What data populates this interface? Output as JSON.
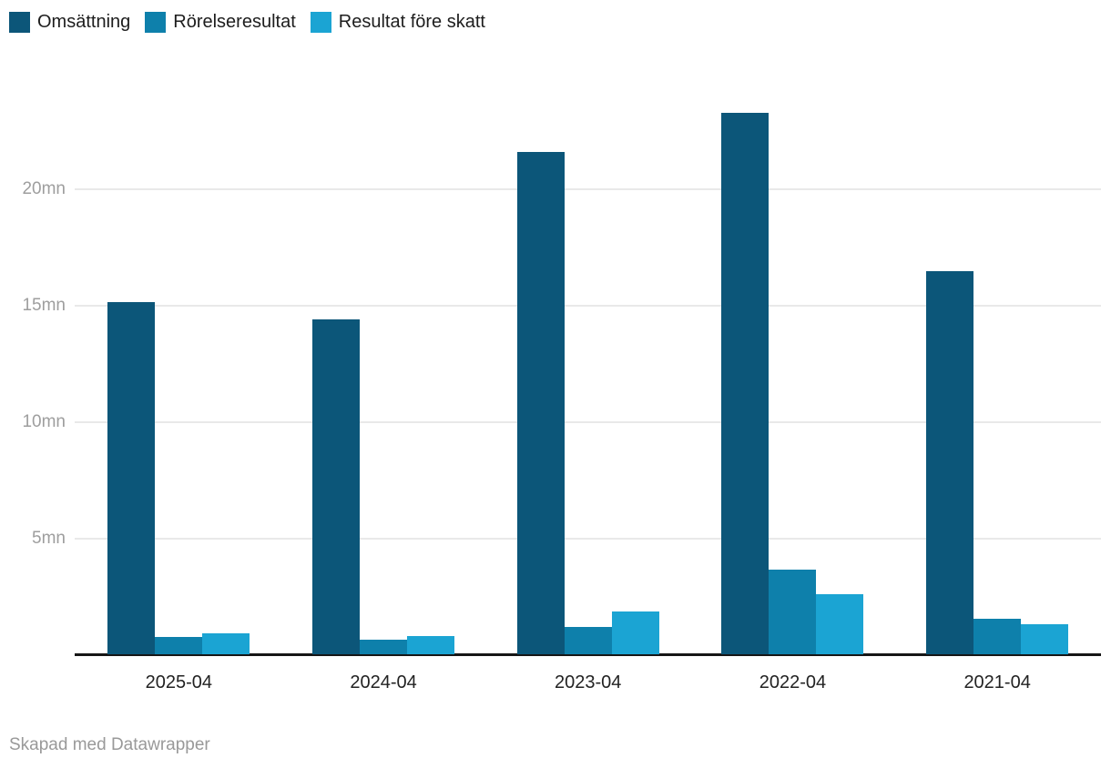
{
  "legend": {
    "items_note": "labels mirror chart_data.series names"
  },
  "footer": {
    "credit": "Skapad med Datawrapper"
  },
  "chart_data": {
    "type": "bar",
    "grouped": true,
    "title": "",
    "xlabel": "",
    "ylabel": "",
    "unit": "mn",
    "categories": [
      "2025-04",
      "2024-04",
      "2023-04",
      "2022-04",
      "2021-04"
    ],
    "series": [
      {
        "name": "Omsättning",
        "color": "#0c5679",
        "values": [
          15.15,
          14.4,
          21.6,
          23.25,
          16.45
        ]
      },
      {
        "name": "Rörelseresultat",
        "color": "#0e80ab",
        "values": [
          0.75,
          0.65,
          1.2,
          3.65,
          1.55
        ]
      },
      {
        "name": "Resultat före skatt",
        "color": "#1ba4d3",
        "values": [
          0.9,
          0.8,
          1.85,
          2.6,
          1.3
        ]
      }
    ],
    "y_ticks": [
      {
        "value": 5,
        "label": "5mn"
      },
      {
        "value": 10,
        "label": "10mn"
      },
      {
        "value": 15,
        "label": "15mn"
      },
      {
        "value": 20,
        "label": "20mn"
      }
    ],
    "ylim": [
      0,
      24
    ],
    "grid": true,
    "legend_position": "top-left",
    "axis_color": "#161616",
    "gridline_color": "#e9e9e9"
  }
}
